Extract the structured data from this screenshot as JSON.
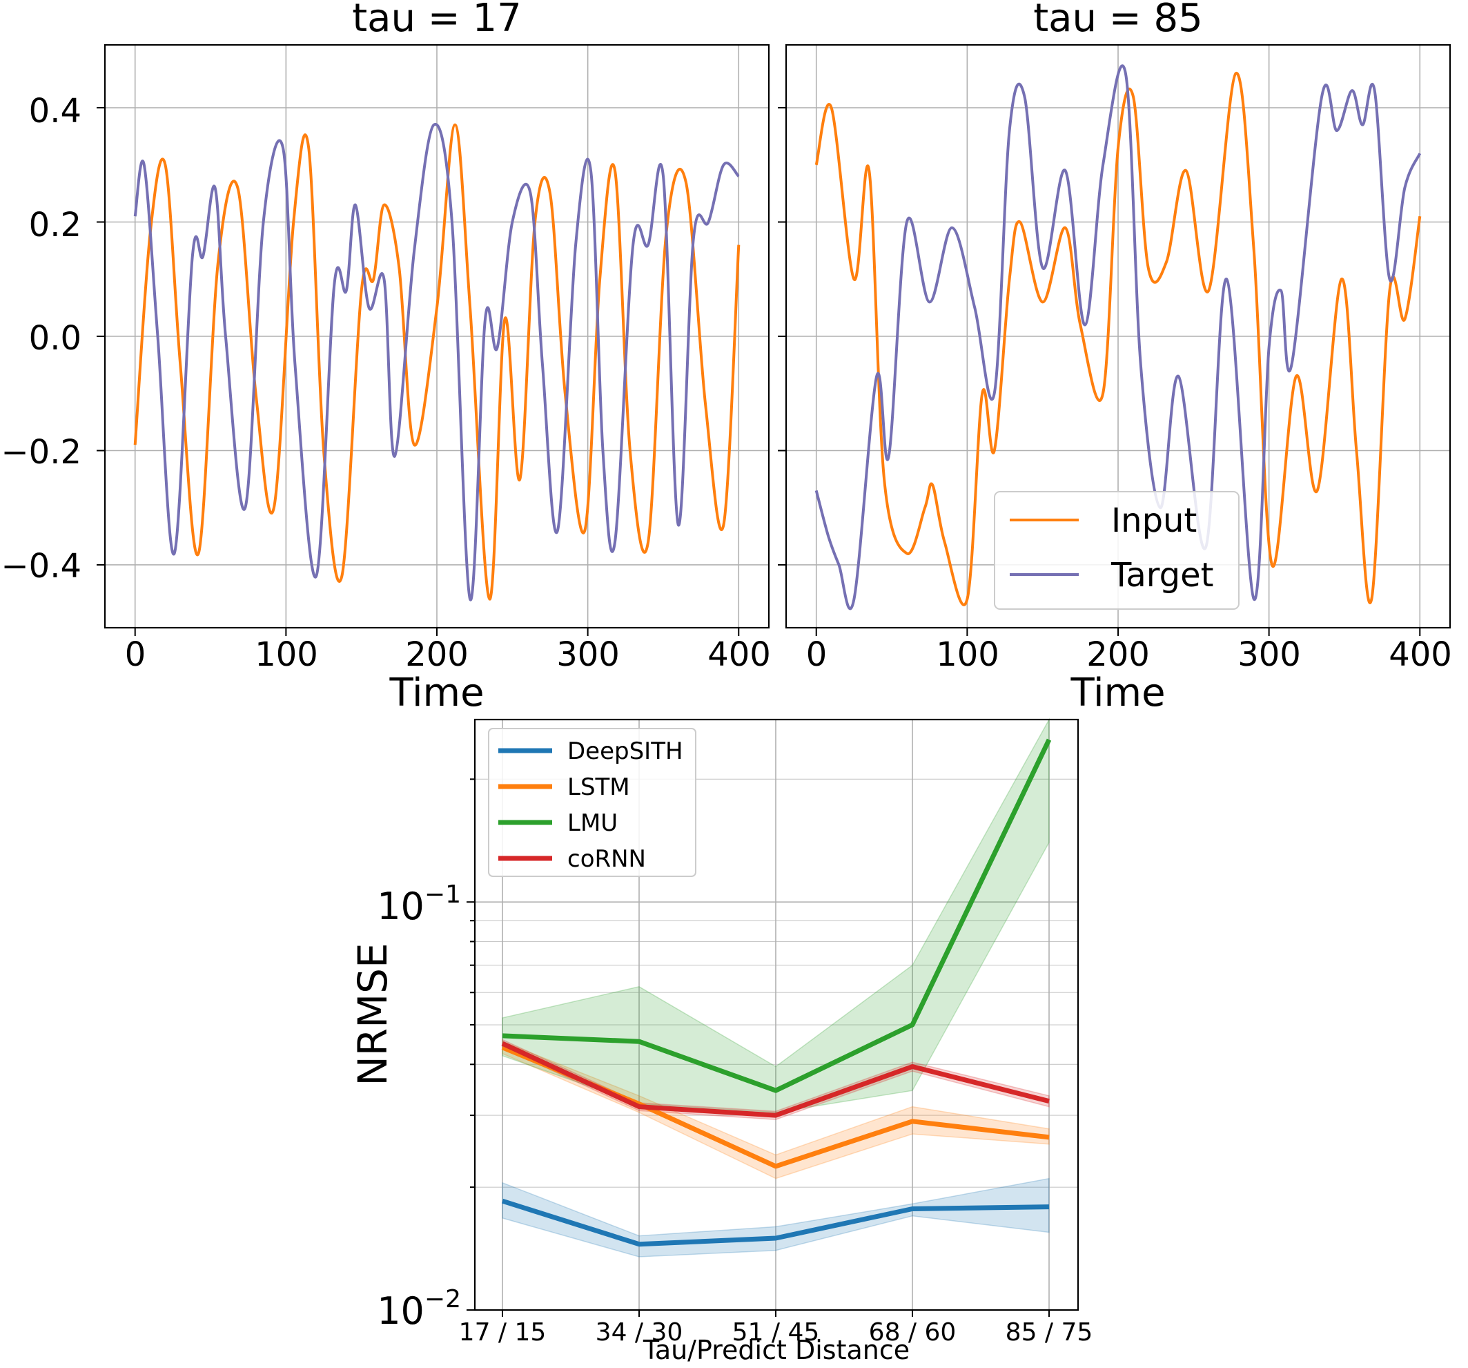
{
  "panels": [
    {
      "title": "tau = 17",
      "xlabel": "Time",
      "xticks": [
        0,
        100,
        200,
        300,
        400
      ],
      "yticks": [
        0.4,
        0.2,
        0.0,
        -0.2,
        -0.4
      ],
      "ytick_labels": [
        "0.4",
        "0.2",
        "0.0",
        "−0.2",
        "−0.4"
      ],
      "xlim": [
        -20,
        420
      ],
      "ylim": [
        -0.51,
        0.51
      ]
    },
    {
      "title": "tau = 85",
      "xlabel": "Time",
      "xticks": [
        0,
        100,
        200,
        300,
        400
      ],
      "xlim": [
        -20,
        420
      ],
      "ylim": [
        -0.51,
        0.51
      ],
      "legend": {
        "placement": "lower-right",
        "entries": [
          "Input",
          "Target"
        ]
      }
    }
  ],
  "bottom_chart": {
    "xlabel": "Tau/Predict Distance",
    "ylabel": "NRMSE",
    "ytick_labels": [
      {
        "base": "10",
        "exp": "−1"
      },
      {
        "base": "10",
        "exp": "−2"
      }
    ]
  },
  "chart_data": [
    {
      "type": "line",
      "title": "tau = 17",
      "xlabel": "Time",
      "ylabel": "",
      "xlim": [
        -20,
        420
      ],
      "ylim": [
        -0.51,
        0.51
      ],
      "grid": true,
      "series": [
        {
          "name": "Input",
          "color": "#ff7f0e",
          "x": [
            0,
            10,
            20,
            30,
            42,
            55,
            68,
            80,
            92,
            105,
            115,
            125,
            137,
            150,
            158,
            165,
            175,
            185,
            200,
            212,
            222,
            235,
            245,
            255,
            265,
            275,
            285,
            298,
            308,
            318,
            328,
            340,
            352,
            365,
            378,
            390,
            400
          ],
          "y": [
            -0.19,
            0.18,
            0.3,
            -0.05,
            -0.38,
            0.13,
            0.26,
            -0.1,
            -0.3,
            0.2,
            0.33,
            -0.2,
            -0.42,
            0.08,
            0.1,
            0.23,
            0.12,
            -0.19,
            0.05,
            0.37,
            0.05,
            -0.46,
            0.03,
            -0.25,
            0.2,
            0.25,
            -0.1,
            -0.34,
            0.1,
            0.29,
            -0.2,
            -0.36,
            0.18,
            0.27,
            -0.12,
            -0.33,
            0.16
          ]
        },
        {
          "name": "Target",
          "color": "#7570b3",
          "x": [
            0,
            6,
            15,
            26,
            38,
            45,
            53,
            60,
            73,
            85,
            98,
            106,
            120,
            132,
            140,
            146,
            155,
            165,
            172,
            185,
            198,
            210,
            222,
            232,
            240,
            250,
            262,
            270,
            280,
            292,
            302,
            310,
            318,
            330,
            340,
            350,
            360,
            370,
            380,
            390,
            400
          ],
          "y": [
            0.21,
            0.3,
            0.0,
            -0.38,
            0.14,
            0.14,
            0.26,
            0.0,
            -0.3,
            0.2,
            0.33,
            -0.05,
            -0.42,
            0.09,
            0.08,
            0.23,
            0.05,
            0.1,
            -0.21,
            0.15,
            0.37,
            0.2,
            -0.46,
            0.03,
            -0.02,
            0.2,
            0.25,
            -0.05,
            -0.34,
            0.16,
            0.29,
            -0.2,
            -0.36,
            0.16,
            0.16,
            0.28,
            -0.33,
            0.17,
            0.2,
            0.3,
            0.28
          ]
        }
      ]
    },
    {
      "type": "line",
      "title": "tau = 85",
      "xlabel": "Time",
      "ylabel": "",
      "xlim": [
        -20,
        420
      ],
      "ylim": [
        -0.51,
        0.51
      ],
      "grid": true,
      "legend": "lower-right",
      "series": [
        {
          "name": "Input",
          "color": "#ff7f0e",
          "x": [
            0,
            10,
            25,
            35,
            45,
            60,
            72,
            77,
            85,
            100,
            110,
            118,
            128,
            135,
            150,
            165,
            175,
            190,
            200,
            210,
            220,
            232,
            245,
            260,
            278,
            290,
            302,
            318,
            332,
            348,
            358,
            368,
            380,
            390,
            400
          ],
          "y": [
            0.3,
            0.4,
            0.1,
            0.29,
            -0.25,
            -0.38,
            -0.3,
            -0.26,
            -0.36,
            -0.46,
            -0.1,
            -0.2,
            0.1,
            0.2,
            0.06,
            0.19,
            0.02,
            -0.1,
            0.33,
            0.42,
            0.12,
            0.13,
            0.29,
            0.08,
            0.46,
            0.15,
            -0.4,
            -0.07,
            -0.27,
            0.1,
            -0.2,
            -0.46,
            0.08,
            0.03,
            0.21
          ]
        },
        {
          "name": "Target",
          "color": "#7570b3",
          "x": [
            0,
            8,
            15,
            25,
            40,
            48,
            60,
            75,
            90,
            105,
            118,
            128,
            138,
            150,
            165,
            178,
            190,
            205,
            215,
            228,
            240,
            258,
            272,
            290,
            300,
            308,
            315,
            335,
            345,
            355,
            362,
            370,
            380,
            390,
            400
          ],
          "y": [
            -0.27,
            -0.35,
            -0.4,
            -0.46,
            -0.07,
            -0.21,
            0.2,
            0.06,
            0.19,
            0.05,
            -0.1,
            0.36,
            0.42,
            0.12,
            0.29,
            0.02,
            0.3,
            0.46,
            -0.05,
            -0.3,
            -0.07,
            -0.37,
            0.1,
            -0.46,
            -0.02,
            0.08,
            -0.05,
            0.42,
            0.36,
            0.43,
            0.37,
            0.43,
            0.1,
            0.26,
            0.32
          ]
        }
      ]
    },
    {
      "type": "line",
      "title": "",
      "xlabel": "Tau/Predict Distance",
      "ylabel": "NRMSE",
      "yscale": "log",
      "ylim": [
        0.01,
        0.28
      ],
      "grid": true,
      "legend": "upper-left",
      "categories": [
        "17 / 15",
        "34 / 30",
        "51 / 45",
        "68 / 60",
        "85 / 75"
      ],
      "series": [
        {
          "name": "DeepSITH",
          "color": "#1f77b4",
          "values": [
            0.0185,
            0.0145,
            0.015,
            0.0177,
            0.0179
          ],
          "lower": [
            0.0168,
            0.0135,
            0.014,
            0.017,
            0.0155
          ],
          "upper": [
            0.0205,
            0.0152,
            0.016,
            0.0182,
            0.021
          ]
        },
        {
          "name": "LSTM",
          "color": "#ff7f0e",
          "values": [
            0.044,
            0.032,
            0.0225,
            0.029,
            0.0265
          ],
          "lower": [
            0.0425,
            0.0305,
            0.021,
            0.027,
            0.0255
          ],
          "upper": [
            0.0455,
            0.0335,
            0.024,
            0.0315,
            0.0278
          ]
        },
        {
          "name": "LMU",
          "color": "#2ca02c",
          "values": [
            0.047,
            0.0455,
            0.0345,
            0.05,
            0.25
          ],
          "lower": [
            0.042,
            0.032,
            0.0305,
            0.0345,
            0.14
          ],
          "upper": [
            0.052,
            0.062,
            0.0395,
            0.07,
            0.28
          ]
        },
        {
          "name": "coRNN",
          "color": "#d62728",
          "values": [
            0.045,
            0.0315,
            0.03,
            0.0395,
            0.0325
          ],
          "lower": [
            0.044,
            0.0308,
            0.0293,
            0.0385,
            0.0315
          ],
          "upper": [
            0.046,
            0.0322,
            0.0307,
            0.0405,
            0.0335
          ]
        }
      ]
    }
  ]
}
